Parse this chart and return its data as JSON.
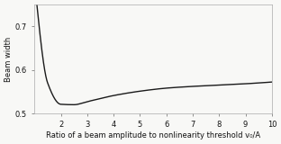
{
  "title": "",
  "xlabel": "Ratio of a beam amplitude to nonlinearity threshold v₀/A",
  "ylabel": "Beam width",
  "xlim": [
    1.0,
    10.0
  ],
  "ylim": [
    0.5,
    0.75
  ],
  "yticks": [
    0.5,
    0.6,
    0.7
  ],
  "xticks": [
    2,
    3,
    4,
    5,
    6,
    7,
    8,
    9,
    10
  ],
  "line_color": "#1a1a1a",
  "line_width": 1.0,
  "bg_color": "#f8f8f6",
  "fig_color": "#f8f8f6",
  "xlabel_fontsize": 6.0,
  "ylabel_fontsize": 6.0,
  "tick_fontsize": 6.0,
  "key_points_x": [
    1.1,
    1.5,
    2.0,
    2.5,
    3.0,
    4.0,
    5.0,
    6.0,
    7.0,
    8.0,
    9.0,
    10.0
  ],
  "key_points_y": [
    0.745,
    0.57,
    0.521,
    0.52,
    0.527,
    0.541,
    0.551,
    0.558,
    0.562,
    0.565,
    0.568,
    0.572
  ]
}
